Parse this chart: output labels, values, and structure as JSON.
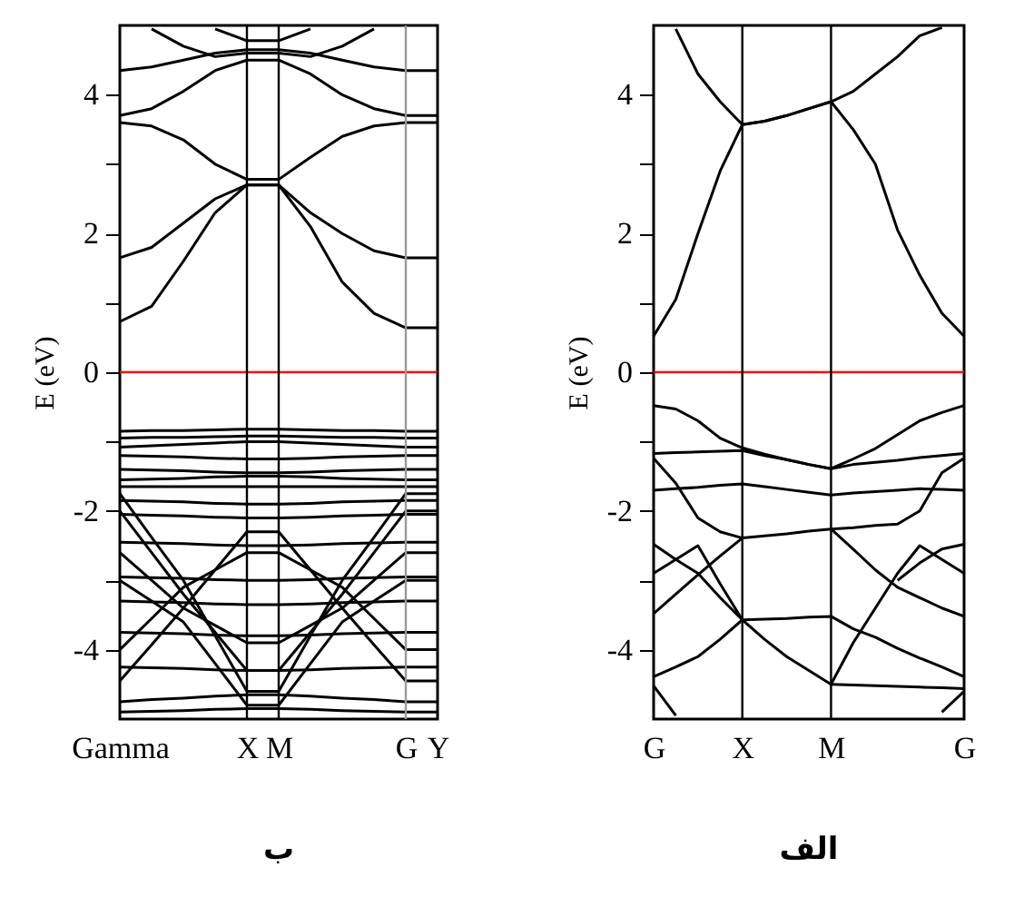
{
  "chart_data": [
    {
      "type": "line",
      "title": "ب",
      "ylabel": "E (eV)",
      "color": "#000000",
      "categories": [
        "Gamma",
        null,
        null,
        null,
        "X",
        "M",
        null,
        null,
        null,
        "G",
        "Y"
      ],
      "ylim": [
        -5,
        5
      ],
      "yticks": [
        -4,
        {
          "value": -3,
          "label": null
        },
        -2,
        {
          "value": -1,
          "label": null
        },
        0,
        {
          "value": 1,
          "label": null
        },
        2,
        {
          "value": 3,
          "label": null
        },
        4
      ],
      "grid": false,
      "legend": false,
      "line_style": "solid",
      "ref_lines": [
        {
          "axis": "y",
          "value": 0,
          "color": "#ff0000"
        },
        {
          "axis": "x",
          "value": "X",
          "color": "#000000"
        },
        {
          "axis": "x",
          "value": "M",
          "color": "#000000"
        },
        {
          "axis": "x",
          "value": "G",
          "color": "#999999"
        }
      ],
      "series": [
        {
          "values": [
            0.73,
            0.95,
            1.6,
            2.3,
            2.7,
            2.7,
            2.1,
            1.3,
            0.85,
            0.64,
            0.64
          ]
        },
        {
          "values": [
            1.65,
            1.8,
            2.15,
            2.5,
            2.7,
            2.7,
            2.3,
            2.0,
            1.75,
            1.65,
            1.65
          ]
        },
        {
          "values": [
            3.6,
            3.55,
            3.35,
            3.0,
            2.78,
            2.78,
            3.1,
            3.4,
            3.55,
            3.6,
            3.6
          ]
        },
        {
          "values": [
            3.7,
            3.8,
            4.05,
            4.35,
            4.5,
            4.5,
            4.3,
            4.0,
            3.8,
            3.7,
            3.7
          ]
        },
        {
          "values": [
            4.35,
            4.4,
            4.5,
            4.6,
            4.65,
            4.65,
            4.6,
            4.5,
            4.4,
            4.35,
            4.35
          ]
        },
        {
          "values": [
            null,
            4.95,
            4.7,
            4.55,
            4.6,
            4.6,
            4.55,
            4.7,
            4.95,
            null,
            null
          ]
        },
        {
          "values": [
            null,
            null,
            null,
            4.95,
            4.78,
            4.78,
            4.95,
            null,
            null,
            null,
            null
          ]
        },
        {
          "values": [
            -0.85,
            -0.84,
            -0.84,
            -0.83,
            -0.82,
            -0.82,
            -0.83,
            -0.84,
            -0.84,
            -0.85,
            -0.85
          ]
        },
        {
          "values": [
            -0.95,
            -0.94,
            -0.94,
            -0.93,
            -0.92,
            -0.92,
            -0.93,
            -0.94,
            -0.94,
            -0.95,
            -0.95
          ]
        },
        {
          "values": [
            -1.08,
            -1.06,
            -1.04,
            -1.02,
            -1.0,
            -1.0,
            -1.02,
            -1.04,
            -1.06,
            -1.08,
            -1.08
          ]
        },
        {
          "values": [
            -1.2,
            -1.21,
            -1.22,
            -1.24,
            -1.25,
            -1.25,
            -1.24,
            -1.22,
            -1.21,
            -1.2,
            -1.2
          ]
        },
        {
          "values": [
            -1.4,
            -1.41,
            -1.42,
            -1.44,
            -1.45,
            -1.45,
            -1.44,
            -1.42,
            -1.41,
            -1.4,
            -1.4
          ]
        },
        {
          "values": [
            -1.55,
            -1.54,
            -1.53,
            -1.51,
            -1.5,
            -1.5,
            -1.51,
            -1.53,
            -1.54,
            -1.55,
            -1.55
          ]
        },
        {
          "values": [
            -1.65,
            -1.65,
            -1.65,
            -1.65,
            -1.65,
            -1.65,
            -1.65,
            -1.65,
            -1.65,
            -1.65,
            -1.65
          ]
        },
        {
          "values": [
            -1.85,
            -1.86,
            -1.87,
            -1.89,
            -1.9,
            -1.9,
            -1.89,
            -1.87,
            -1.86,
            -1.85,
            -1.85
          ]
        },
        {
          "values": [
            -2.05,
            -2.06,
            -2.07,
            -2.09,
            -2.1,
            -2.1,
            -2.09,
            -2.07,
            -2.06,
            -2.05,
            -2.05
          ]
        },
        {
          "values": [
            -2.45,
            -2.46,
            -2.47,
            -2.49,
            -2.5,
            -2.5,
            -2.49,
            -2.47,
            -2.46,
            -2.45,
            -2.45
          ]
        },
        {
          "values": [
            -2.95,
            -2.96,
            -2.97,
            -2.99,
            -3.0,
            -3.0,
            -2.99,
            -2.97,
            -2.96,
            -2.95,
            -2.95
          ]
        },
        {
          "values": [
            -3.3,
            -3.31,
            -3.32,
            -3.34,
            -3.35,
            -3.35,
            -3.34,
            -3.32,
            -3.31,
            -3.3,
            -3.3
          ]
        },
        {
          "values": [
            -3.75,
            -3.76,
            -3.77,
            -3.79,
            -3.8,
            -3.8,
            -3.79,
            -3.77,
            -3.76,
            -3.75,
            -3.75
          ]
        },
        {
          "values": [
            -4.25,
            -4.26,
            -4.27,
            -4.29,
            -4.3,
            -4.3,
            -4.29,
            -4.27,
            -4.26,
            -4.25,
            -4.25
          ]
        },
        {
          "values": [
            -4.75,
            -4.72,
            -4.7,
            -4.67,
            -4.65,
            -4.65,
            -4.67,
            -4.7,
            -4.72,
            -4.75,
            -4.75
          ]
        },
        {
          "values": [
            -4.9,
            -4.89,
            -4.88,
            -4.86,
            -4.85,
            -4.85,
            -4.86,
            -4.88,
            -4.89,
            -4.9,
            -4.9
          ]
        },
        {
          "values": [
            -1.75,
            -2.38,
            -3.0,
            -3.8,
            -4.6,
            -4.6,
            -3.8,
            -3.0,
            -2.38,
            -1.75,
            -1.75
          ]
        },
        {
          "values": [
            -2.0,
            -2.6,
            -3.2,
            -3.75,
            -4.3,
            -4.3,
            -3.75,
            -3.2,
            -2.6,
            -2.0,
            -2.0
          ]
        },
        {
          "values": [
            -2.6,
            -3.0,
            -3.4,
            -3.65,
            -3.9,
            -3.9,
            -3.65,
            -3.4,
            -3.0,
            -2.6,
            -2.6
          ]
        },
        {
          "values": [
            -4.45,
            -3.93,
            -3.4,
            -2.85,
            -2.3,
            -2.3,
            -2.85,
            -3.4,
            -3.93,
            -4.45,
            -4.45
          ]
        },
        {
          "values": [
            -4.0,
            -3.55,
            -3.1,
            -2.85,
            -2.6,
            -2.6,
            -2.85,
            -3.1,
            -3.55,
            -4.0,
            -4.0
          ]
        },
        {
          "values": [
            -3.0,
            -3.3,
            -3.6,
            -4.2,
            -4.8,
            -4.8,
            -4.2,
            -3.6,
            -3.3,
            -3.0,
            -3.0
          ]
        }
      ]
    },
    {
      "type": "line",
      "title": "الف",
      "ylabel": "E (eV)",
      "color": "#000000",
      "categories": [
        "G",
        null,
        null,
        null,
        "X",
        null,
        null,
        null,
        "M",
        null,
        null,
        null,
        null,
        null,
        "G"
      ],
      "ylim": [
        -5,
        5
      ],
      "yticks": [
        -4,
        {
          "value": -3,
          "label": null
        },
        -2,
        {
          "value": -1,
          "label": null
        },
        0,
        {
          "value": 1,
          "label": null
        },
        2,
        {
          "value": 3,
          "label": null
        },
        4
      ],
      "grid": false,
      "legend": false,
      "line_style": "solid",
      "ref_lines": [
        {
          "axis": "y",
          "value": 0,
          "color": "#ff0000"
        },
        {
          "axis": "x",
          "value": "X",
          "color": "#000000"
        },
        {
          "axis": "x",
          "value": "M",
          "color": "#000000"
        }
      ],
      "series": [
        {
          "values": [
            0.52,
            1.05,
            2.0,
            2.9,
            3.57,
            3.62,
            3.7,
            3.8,
            3.9,
            3.5,
            3.0,
            2.05,
            1.4,
            0.85,
            0.52
          ]
        },
        {
          "values": [
            null,
            4.95,
            4.3,
            3.9,
            3.57,
            3.62,
            3.7,
            3.8,
            3.9,
            4.05,
            4.3,
            4.55,
            4.85,
            4.97,
            null
          ]
        },
        {
          "values": [
            -0.48,
            -0.53,
            -0.7,
            -0.95,
            -1.09,
            -1.18,
            -1.26,
            -1.33,
            -1.39,
            -1.25,
            -1.1,
            -0.9,
            -0.7,
            -0.58,
            -0.48
          ]
        },
        {
          "values": [
            -1.17,
            -1.16,
            -1.15,
            -1.14,
            -1.13,
            -1.2,
            -1.26,
            -1.33,
            -1.39,
            -1.33,
            -1.3,
            -1.27,
            -1.23,
            -1.2,
            -1.17
          ]
        },
        {
          "values": [
            -1.7,
            -1.68,
            -1.66,
            -1.63,
            -1.61,
            -1.65,
            -1.69,
            -1.73,
            -1.77,
            -1.74,
            -1.72,
            -1.7,
            -1.68,
            -1.69,
            -1.7
          ]
        },
        {
          "values": [
            -1.24,
            -1.6,
            -2.1,
            -2.3,
            -2.39,
            -2.36,
            -2.33,
            -2.29,
            -2.26,
            -2.24,
            -2.21,
            -2.19,
            -2.0,
            -1.45,
            -1.24
          ]
        },
        {
          "values": [
            -2.48,
            -2.7,
            -2.9,
            -3.25,
            -3.57,
            -3.56,
            -3.55,
            -3.53,
            -3.52,
            -3.7,
            -3.82,
            -3.98,
            -4.12,
            -4.25,
            -4.39
          ]
        },
        {
          "values": [
            -3.48,
            -3.2,
            -2.92,
            -2.65,
            -2.39,
            null,
            null,
            null,
            null,
            null,
            null,
            null,
            null,
            null,
            null
          ]
        },
        {
          "values": [
            -2.9,
            -2.7,
            -2.5,
            -3.05,
            -3.57,
            -3.85,
            -4.1,
            -4.3,
            -4.5,
            -3.9,
            -3.4,
            -2.9,
            -2.5,
            -2.7,
            -2.9
          ]
        },
        {
          "values": [
            -4.39,
            -4.25,
            -4.1,
            -3.85,
            -3.57,
            null,
            null,
            null,
            null,
            null,
            null,
            null,
            null,
            null,
            null
          ]
        },
        {
          "values": [
            -4.52,
            -4.95,
            null,
            null,
            null,
            null,
            null,
            null,
            null,
            null,
            null,
            null,
            null,
            null,
            null
          ]
        },
        {
          "values": [
            null,
            null,
            null,
            null,
            null,
            null,
            null,
            null,
            -2.26,
            -2.55,
            -2.85,
            -3.1,
            -3.25,
            -3.4,
            -3.52
          ]
        },
        {
          "values": [
            null,
            null,
            null,
            null,
            null,
            null,
            null,
            null,
            -4.5,
            -4.51,
            -4.52,
            -4.53,
            -4.54,
            -4.55,
            -4.56
          ]
        },
        {
          "values": [
            null,
            null,
            null,
            null,
            null,
            null,
            null,
            null,
            null,
            null,
            null,
            -3.0,
            -2.75,
            -2.55,
            -2.48
          ]
        },
        {
          "values": [
            null,
            null,
            null,
            null,
            null,
            null,
            null,
            null,
            null,
            null,
            null,
            null,
            null,
            -4.9,
            -4.6
          ]
        }
      ]
    }
  ]
}
